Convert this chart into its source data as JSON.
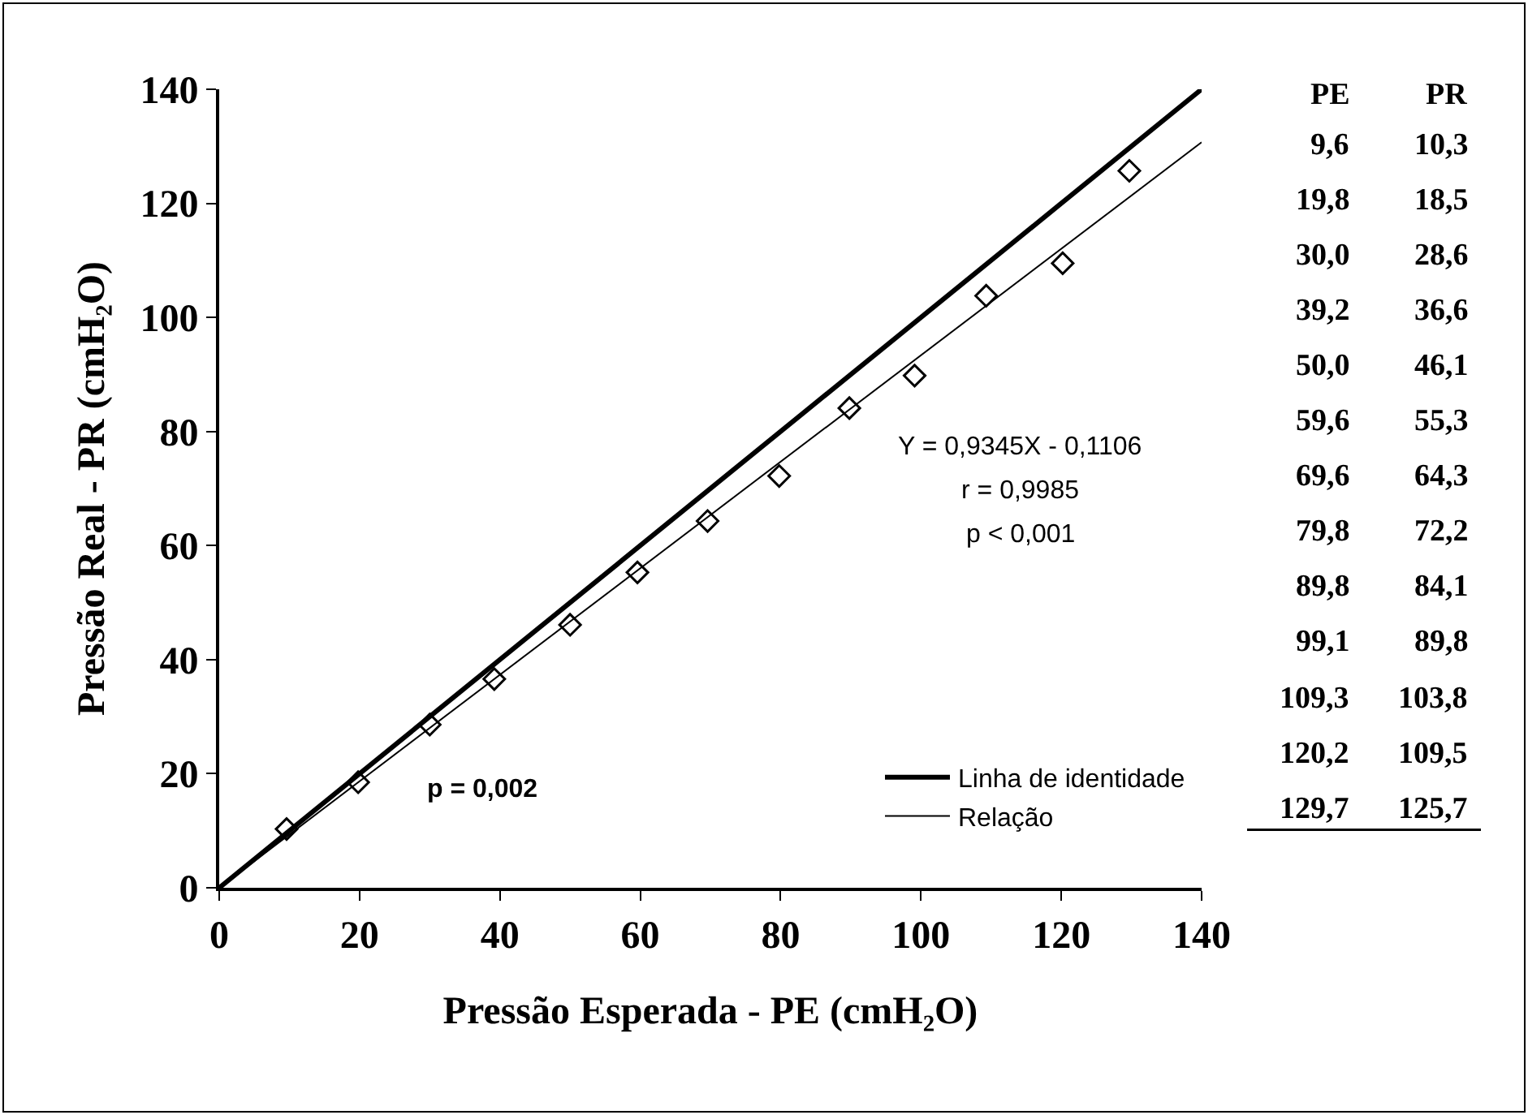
{
  "chart_data": {
    "type": "scatter",
    "xlabel": "Pressão Esperada - PE (cmH₂O)",
    "ylabel": "Pressão Real - PR (cmH₂O)",
    "xlim": [
      0,
      140
    ],
    "ylim": [
      0,
      140
    ],
    "xticks": [
      0,
      20,
      40,
      60,
      80,
      100,
      120,
      140
    ],
    "yticks": [
      0,
      20,
      40,
      60,
      80,
      100,
      120,
      140
    ],
    "grid": false,
    "legend": "bottom right",
    "series": [
      {
        "marker": "diamond",
        "color": "#000000",
        "x": [
          9.6,
          19.8,
          30.0,
          39.2,
          50.0,
          59.6,
          69.6,
          79.8,
          89.8,
          99.1,
          109.3,
          120.2,
          129.7
        ],
        "values": [
          10.3,
          18.5,
          28.6,
          36.6,
          46.1,
          55.3,
          64.3,
          72.2,
          84.1,
          89.8,
          103.8,
          109.5,
          125.7
        ]
      },
      {
        "type": "line",
        "name": "Linha de identidade",
        "color": "#000000",
        "x": [
          0,
          140
        ],
        "values": [
          0,
          140
        ]
      },
      {
        "type": "line",
        "name": "Relação",
        "color": "#000000",
        "x": [
          0,
          140
        ],
        "values": [
          0,
          130.7
        ]
      }
    ],
    "annotations": [
      "Y = 0,9345X - 0,1106",
      "r = 0,9985",
      "p < 0,001",
      "p = 0,002",
      "PE",
      "PR",
      "9,6",
      "10,3",
      "19,8",
      "18,5",
      "30,0",
      "28,6",
      "39,2",
      "36,6",
      "50,0",
      "46,1",
      "59,6",
      "55,3",
      "69,6",
      "64,3",
      "79,8",
      "72,2",
      "89,8",
      "84,1",
      "99,1",
      "89,8",
      "109,3",
      "103,8",
      "120,2",
      "109,5",
      "129,7",
      "125,7"
    ]
  }
}
